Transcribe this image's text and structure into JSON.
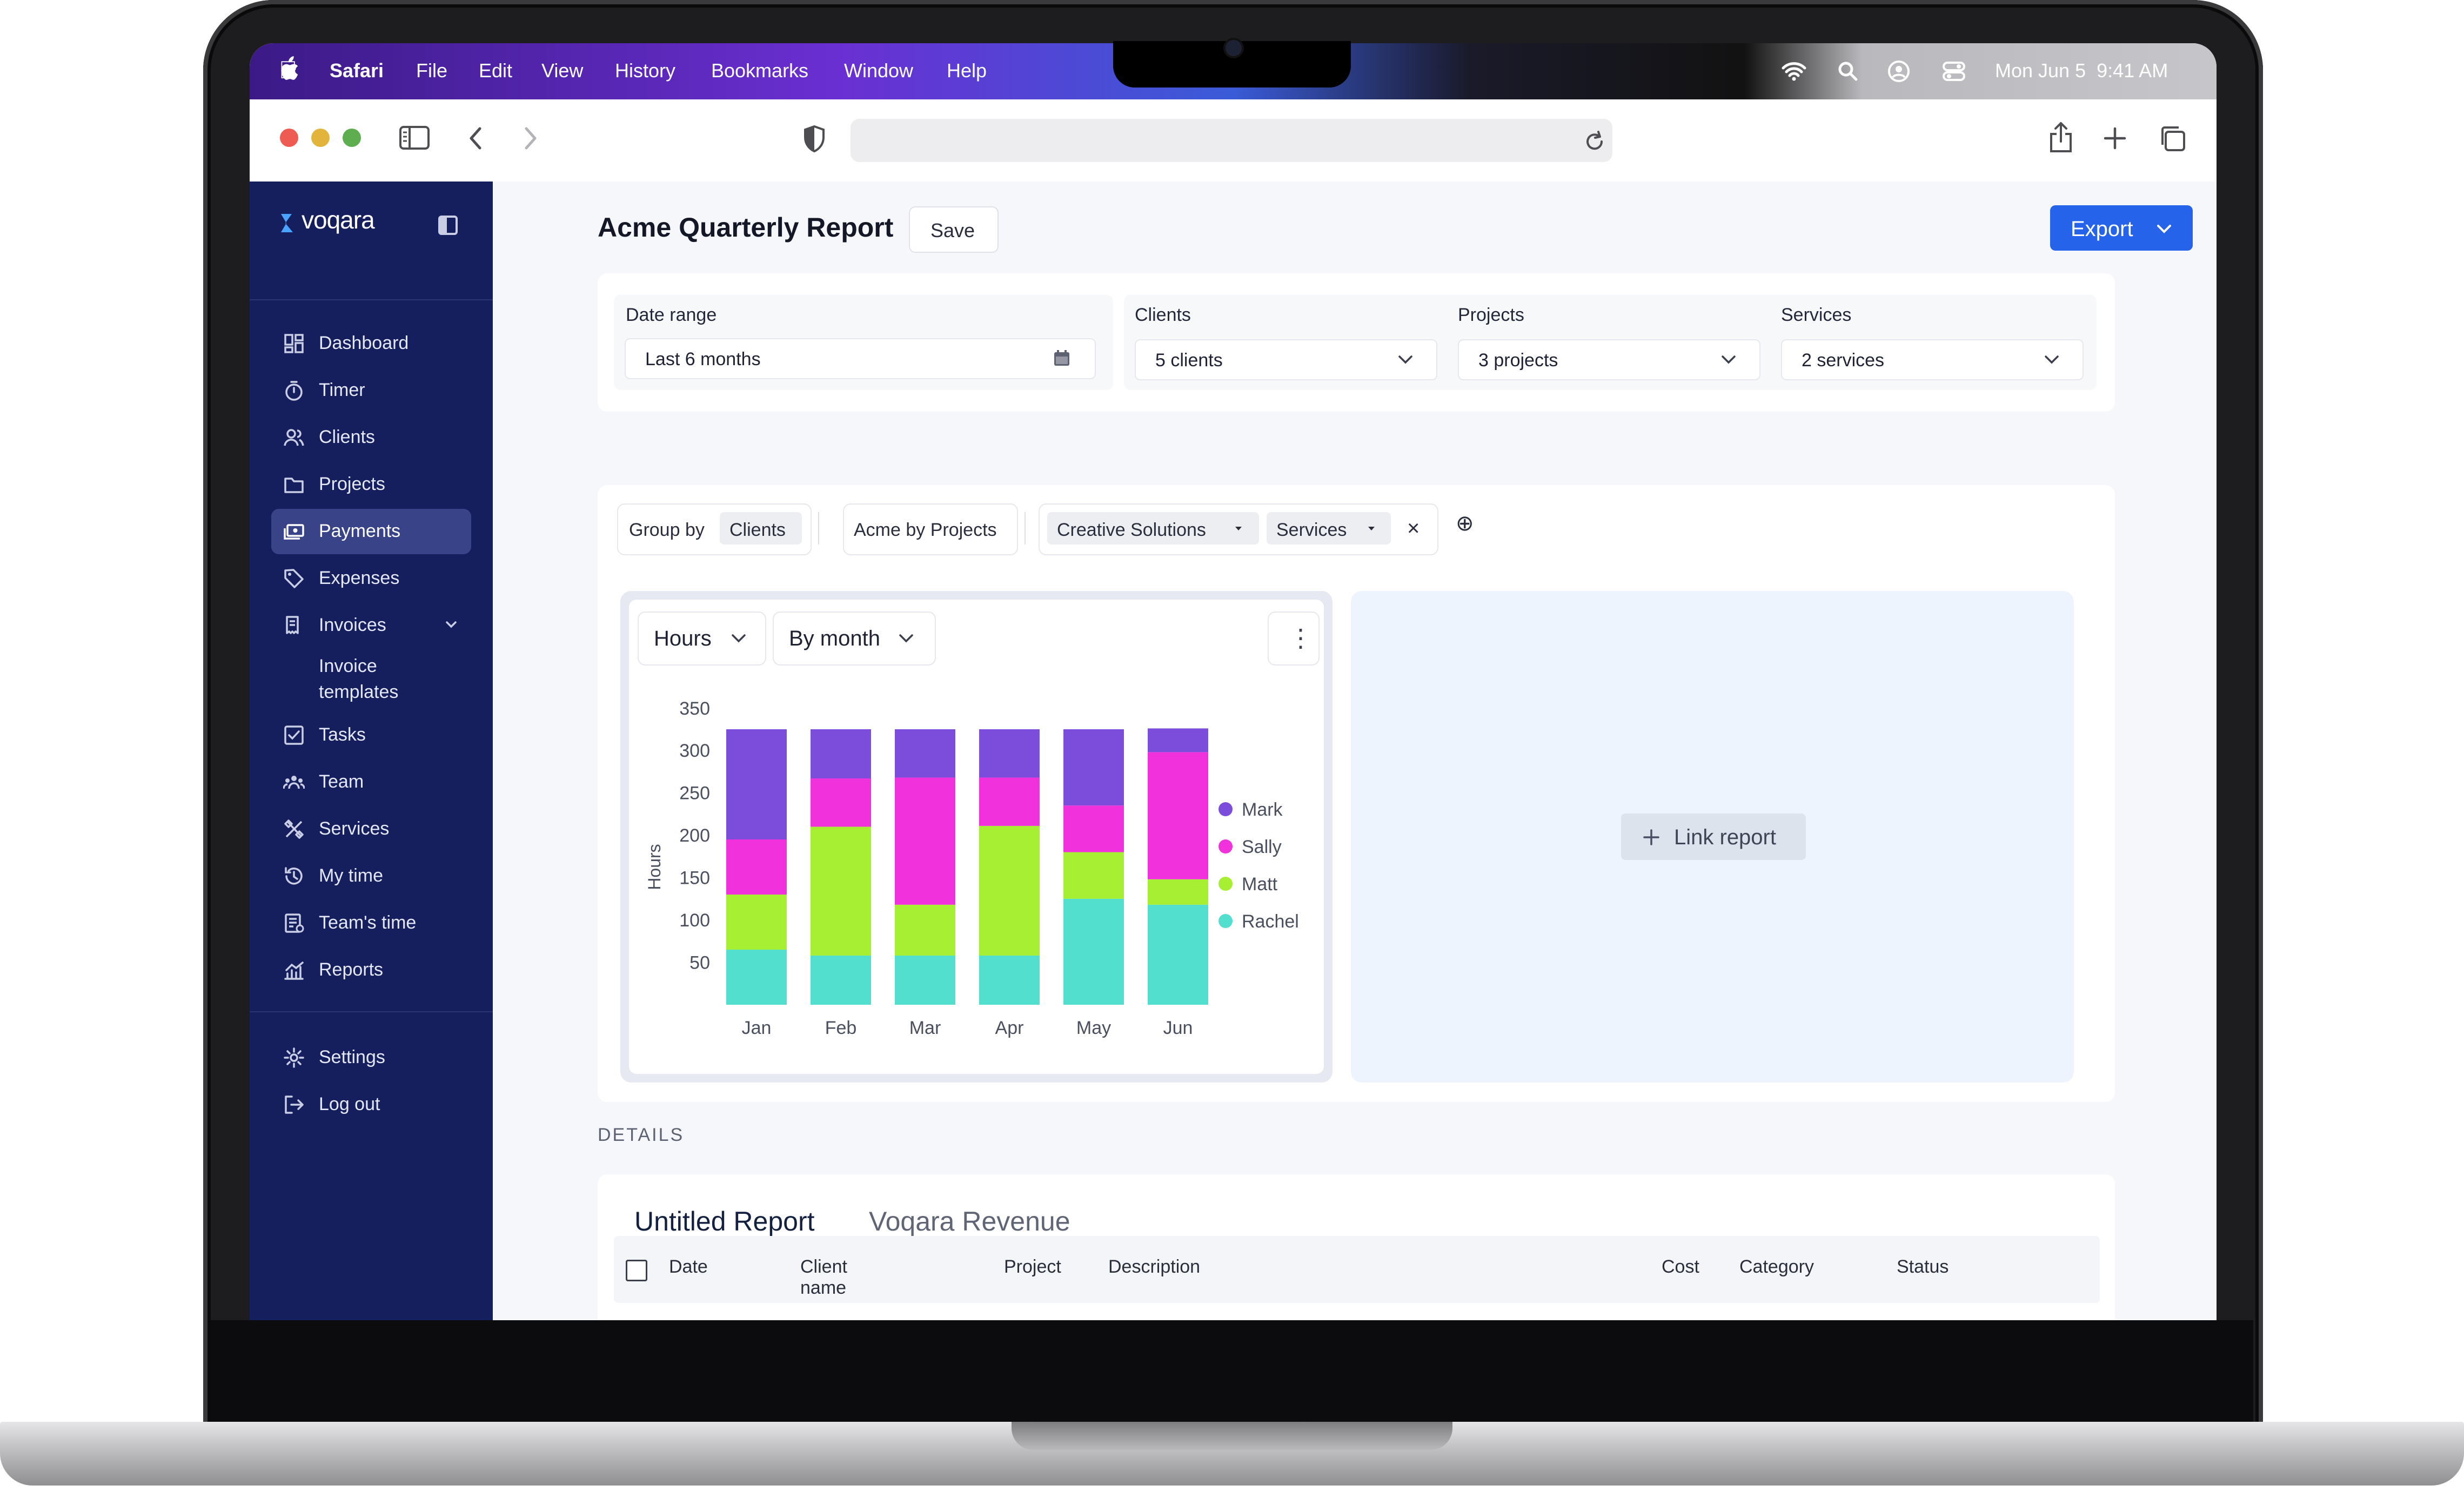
{
  "menubar": {
    "app": "Safari",
    "items": [
      "File",
      "Edit",
      "View",
      "History",
      "Bookmarks",
      "Window",
      "Help"
    ],
    "clock": "Mon Jun 5  9:41 AM"
  },
  "sidebar": {
    "brand": "voqara",
    "items": [
      {
        "label": "Dashboard",
        "icon": "dashboard-icon"
      },
      {
        "label": "Timer",
        "icon": "stopwatch-icon"
      },
      {
        "label": "Clients",
        "icon": "users-icon"
      },
      {
        "label": "Projects",
        "icon": "folder-icon"
      },
      {
        "label": "Payments",
        "icon": "cash-icon",
        "active": true
      },
      {
        "label": "Expenses",
        "icon": "tag-icon"
      },
      {
        "label": "Invoices",
        "icon": "invoice-icon"
      },
      {
        "label": "Invoice",
        "icon": ""
      },
      {
        "label": "templates",
        "icon": ""
      },
      {
        "label": "Tasks",
        "icon": "checkbox-icon"
      },
      {
        "label": "Team",
        "icon": "team-icon"
      },
      {
        "label": "Services",
        "icon": "tools-icon"
      },
      {
        "label": "My time",
        "icon": "history-icon"
      },
      {
        "label": "Team's time",
        "icon": "report-doc-icon"
      },
      {
        "label": "Reports",
        "icon": "chart-icon"
      }
    ],
    "bottom": [
      {
        "label": "Settings",
        "icon": "gear-icon"
      },
      {
        "label": "Log out",
        "icon": "logout-icon"
      }
    ]
  },
  "header": {
    "title": "Acme Quarterly Report",
    "save_label": "Save",
    "export_label": "Export"
  },
  "filters": {
    "date_range": {
      "label": "Date range",
      "value": "Last 6 months"
    },
    "clients": {
      "label": "Clients",
      "value": "5 clients"
    },
    "projects": {
      "label": "Projects",
      "value": "3 projects"
    },
    "services": {
      "label": "Services",
      "value": "2 services"
    }
  },
  "grouping": {
    "group_by_label": "Group by",
    "group_by_value": "Clients",
    "view": "Acme by Projects",
    "chip1": "Creative Solutions",
    "chip2": "Services",
    "close": "×",
    "add": "⊕"
  },
  "chart_controls": {
    "metric": "Hours",
    "interval": "By month",
    "menu": "⋮"
  },
  "chart_data": {
    "type": "bar",
    "stacked": true,
    "categories": [
      "Jan",
      "Feb",
      "Mar",
      "Apr",
      "May",
      "Jun"
    ],
    "series": [
      {
        "name": "Rachel",
        "color": "#53dfce",
        "values": [
          65,
          58,
          58,
          58,
          125,
          118
        ]
      },
      {
        "name": "Matt",
        "color": "#a6ef33",
        "values": [
          65,
          152,
          60,
          153,
          55,
          30
        ]
      },
      {
        "name": "Sally",
        "color": "#f131db",
        "values": [
          65,
          57,
          150,
          57,
          55,
          150
        ]
      },
      {
        "name": "Mark",
        "color": "#7c4ddb",
        "values": [
          130,
          58,
          57,
          57,
          90,
          28
        ]
      }
    ],
    "ylabel": "Hours",
    "yticks": [
      50,
      100,
      150,
      200,
      250,
      300,
      350
    ],
    "ylim": [
      0,
      325
    ],
    "legend_position": "right",
    "legend": [
      "Mark",
      "Sally",
      "Matt",
      "Rachel"
    ]
  },
  "link_report_label": "Link report",
  "details": {
    "heading": "DETAILS",
    "tabs": [
      "Untitled Report",
      "Voqara Revenue"
    ],
    "columns": [
      "Date",
      "Client name",
      "Project",
      "Description",
      "Cost",
      "Category",
      "Status"
    ]
  }
}
